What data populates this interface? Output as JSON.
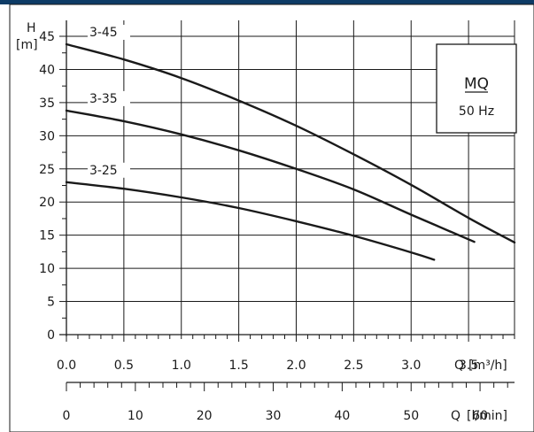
{
  "colors": {
    "header_bar": "#0d3b66",
    "frame": "#1a1a1a",
    "curve": "#1a1a1a",
    "grid": "#1a1a1a"
  },
  "legend": {
    "title": "MQ",
    "subtitle": "50 Hz"
  },
  "chart_data": {
    "type": "line",
    "title": "",
    "ylabel": "H",
    "yunit": "[m]",
    "xlabel": "Q",
    "xunit": "[m³/h]",
    "x2label": "Q",
    "x2unit": "[l/min]",
    "xlim": [
      0,
      3.9
    ],
    "ylim": [
      0,
      47
    ],
    "x_ticks": [
      0.0,
      0.5,
      1.0,
      1.5,
      2.0,
      2.5,
      3.0,
      3.5
    ],
    "x_tick_labels": [
      "0.0",
      "0.5",
      "1.0",
      "1.5",
      "2.0",
      "2.5",
      "3.0",
      "3.5"
    ],
    "y_ticks": [
      0,
      5,
      10,
      15,
      20,
      25,
      30,
      35,
      40,
      45
    ],
    "y_tick_labels": [
      "0",
      "5",
      "10",
      "15",
      "20",
      "25",
      "30",
      "35",
      "40",
      "45"
    ],
    "x2_ticks": [
      0,
      10,
      20,
      30,
      40,
      50,
      60
    ],
    "x2_tick_labels": [
      "0",
      "10",
      "20",
      "30",
      "40",
      "50",
      "60"
    ],
    "grid": true,
    "series": [
      {
        "name": "3-45",
        "x": [
          0.0,
          0.5,
          1.0,
          1.5,
          2.0,
          2.5,
          3.0,
          3.5,
          3.9
        ],
        "y": [
          43.8,
          41.5,
          38.7,
          35.3,
          31.5,
          27.2,
          22.6,
          17.6,
          13.9
        ]
      },
      {
        "name": "3-35",
        "x": [
          0.0,
          0.5,
          1.0,
          1.5,
          2.0,
          2.5,
          3.0,
          3.55
        ],
        "y": [
          33.8,
          32.2,
          30.2,
          27.8,
          25.0,
          21.9,
          18.1,
          14.0
        ]
      },
      {
        "name": "3-25",
        "x": [
          0.0,
          0.5,
          1.0,
          1.5,
          2.0,
          2.5,
          3.0,
          3.2
        ],
        "y": [
          23.0,
          22.0,
          20.7,
          19.1,
          17.1,
          14.9,
          12.4,
          11.3
        ]
      }
    ]
  }
}
